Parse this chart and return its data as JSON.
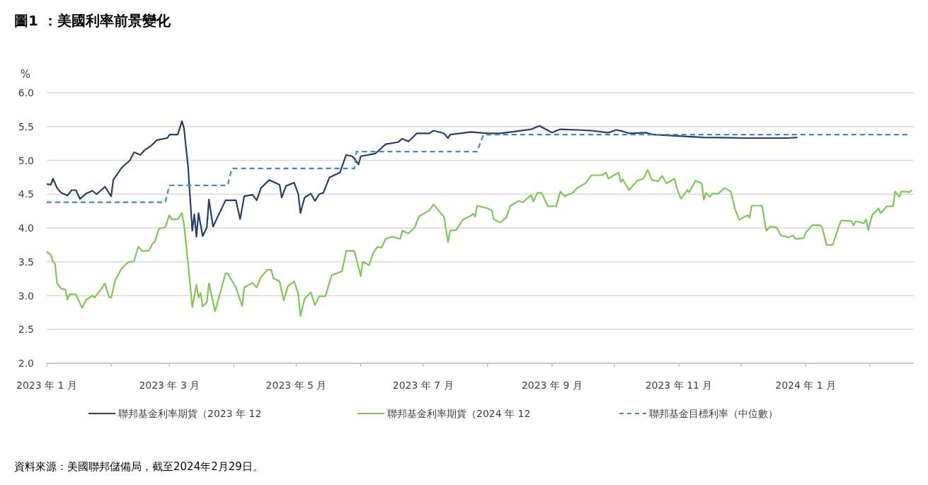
{
  "chart_data": {
    "type": "line",
    "title": "圖1 ：美國利率前景變化",
    "ylabel": "%",
    "xlim": [
      "2023-01-01",
      "2024-02-22"
    ],
    "xticks": [
      {
        "value": "2023-01-01",
        "label": "2023 年 1 月"
      },
      {
        "value": "2023-02-01",
        "label": null
      },
      {
        "value": "2023-03-01",
        "label": "2023 年 3 月"
      },
      {
        "value": "2023-04-01",
        "label": null
      },
      {
        "value": "2023-05-01",
        "label": "2023 年 5 月"
      },
      {
        "value": "2023-06-01",
        "label": null
      },
      {
        "value": "2023-07-01",
        "label": "2023 年 7 月"
      },
      {
        "value": "2023-08-01",
        "label": null
      },
      {
        "value": "2023-09-01",
        "label": "2023 年 9 月"
      },
      {
        "value": "2023-10-01",
        "label": null
      },
      {
        "value": "2023-11-01",
        "label": "2023 年 11 月"
      },
      {
        "value": "2023-12-01",
        "label": null
      },
      {
        "value": "2024-01-01",
        "label": "2024 年 1 月"
      },
      {
        "value": "2024-02-01",
        "label": null
      }
    ],
    "ylim": [
      2.0,
      6.0
    ],
    "yticks": [
      {
        "value": 2,
        "label": "2.0"
      },
      {
        "value": 2.5,
        "label": "2.5"
      },
      {
        "value": 3,
        "label": "3.0"
      },
      {
        "value": 3.5,
        "label": "3.5"
      },
      {
        "value": 4,
        "label": "4.0"
      },
      {
        "value": 4.5,
        "label": "4.5"
      },
      {
        "value": 5,
        "label": "5.0"
      },
      {
        "value": 5.5,
        "label": "5.5"
      },
      {
        "value": 6,
        "label": "6.0"
      }
    ],
    "grid": "y",
    "legend": "bottom",
    "annotations": [
      "資料來源：美國聯邦儲備局，截至2024年2月29日。"
    ],
    "series": [
      {
        "name": "聯邦基金利率期貨（2023 年 12",
        "color": "#243f6b",
        "line_style": "solid",
        "x": [
          "2023-01-01",
          "2023-01-03",
          "2023-01-04",
          "2023-01-06",
          "2023-01-08",
          "2023-01-11",
          "2023-01-13",
          "2023-01-15",
          "2023-01-17",
          "2023-01-20",
          "2023-01-23",
          "2023-01-25",
          "2023-01-29",
          "2023-02-01",
          "2023-02-02",
          "2023-02-06",
          "2023-02-10",
          "2023-02-12",
          "2023-02-15",
          "2023-02-17",
          "2023-02-20",
          "2023-02-23",
          "2023-02-28",
          "2023-03-01",
          "2023-03-05",
          "2023-03-07",
          "2023-03-08",
          "2023-03-10",
          "2023-03-12",
          "2023-03-13",
          "2023-03-14",
          "2023-03-15",
          "2023-03-17",
          "2023-03-19",
          "2023-03-20",
          "2023-03-22",
          "2023-03-28",
          "2023-04-02",
          "2023-04-04",
          "2023-04-06",
          "2023-04-10",
          "2023-04-12",
          "2023-04-14",
          "2023-04-18",
          "2023-04-23",
          "2023-04-24",
          "2023-04-26",
          "2023-04-30",
          "2023-05-02",
          "2023-05-03",
          "2023-05-05",
          "2023-05-08",
          "2023-05-10",
          "2023-05-12",
          "2023-05-14",
          "2023-05-17",
          "2023-05-22",
          "2023-05-25",
          "2023-05-28",
          "2023-05-31",
          "2023-06-01",
          "2023-06-08",
          "2023-06-13",
          "2023-06-19",
          "2023-06-21",
          "2023-06-24",
          "2023-06-28",
          "2023-07-04",
          "2023-07-06",
          "2023-07-11",
          "2023-07-13",
          "2023-07-14",
          "2023-07-24",
          "2023-08-01",
          "2023-08-07",
          "2023-08-15",
          "2023-08-22",
          "2023-08-26",
          "2023-08-29",
          "2023-09-01",
          "2023-09-05",
          "2023-09-13",
          "2023-09-20",
          "2023-09-28",
          "2023-10-02",
          "2023-10-05",
          "2023-10-08",
          "2023-10-16",
          "2023-10-20",
          "2023-11-01",
          "2023-11-13",
          "2023-12-05",
          "2023-12-23",
          "2023-12-28"
        ],
        "values": [
          4.65,
          4.64,
          4.73,
          4.59,
          4.52,
          4.48,
          4.56,
          4.56,
          4.43,
          4.51,
          4.55,
          4.5,
          4.61,
          4.47,
          4.71,
          4.89,
          5.0,
          5.12,
          5.08,
          5.15,
          5.21,
          5.3,
          5.33,
          5.38,
          5.38,
          5.58,
          5.48,
          4.9,
          3.96,
          4.2,
          3.87,
          4.22,
          3.88,
          4.01,
          4.42,
          4.02,
          4.41,
          4.41,
          4.13,
          4.47,
          4.49,
          4.41,
          4.59,
          4.71,
          4.64,
          4.45,
          4.62,
          4.67,
          4.5,
          4.22,
          4.45,
          4.51,
          4.4,
          4.5,
          4.52,
          4.75,
          4.82,
          5.08,
          5.06,
          4.94,
          5.06,
          5.1,
          5.24,
          5.27,
          5.32,
          5.28,
          5.4,
          5.4,
          5.44,
          5.4,
          5.33,
          5.38,
          5.42,
          5.4,
          5.4,
          5.43,
          5.46,
          5.51,
          5.46,
          5.41,
          5.46,
          5.45,
          5.44,
          5.41,
          5.45,
          5.43,
          5.4,
          5.41,
          5.38,
          5.36,
          5.34,
          5.33,
          5.33,
          5.34
        ]
      },
      {
        "name": "聯邦基金利率期貨（2024 年 12",
        "color": "#7dc855",
        "line_style": "solid",
        "x": [
          "2023-01-01",
          "2023-01-03",
          "2023-01-04",
          "2023-01-05",
          "2023-01-06",
          "2023-01-08",
          "2023-01-10",
          "2023-01-11",
          "2023-01-12",
          "2023-01-15",
          "2023-01-18",
          "2023-01-20",
          "2023-01-23",
          "2023-01-24",
          "2023-01-27",
          "2023-01-29",
          "2023-01-31",
          "2023-02-01",
          "2023-02-03",
          "2023-02-06",
          "2023-02-09",
          "2023-02-12",
          "2023-02-14",
          "2023-02-16",
          "2023-02-19",
          "2023-02-21",
          "2023-02-22",
          "2023-02-24",
          "2023-02-27",
          "2023-03-01",
          "2023-03-02",
          "2023-03-05",
          "2023-03-07",
          "2023-03-08",
          "2023-03-10",
          "2023-03-12",
          "2023-03-14",
          "2023-03-15",
          "2023-03-16",
          "2023-03-17",
          "2023-03-19",
          "2023-03-20",
          "2023-03-23",
          "2023-03-28",
          "2023-03-29",
          "2023-04-02",
          "2023-04-05",
          "2023-04-06",
          "2023-04-10",
          "2023-04-12",
          "2023-04-14",
          "2023-04-17",
          "2023-04-19",
          "2023-04-20",
          "2023-04-23",
          "2023-04-25",
          "2023-04-27",
          "2023-04-30",
          "2023-05-02",
          "2023-05-03",
          "2023-05-05",
          "2023-05-08",
          "2023-05-10",
          "2023-05-12",
          "2023-05-15",
          "2023-05-18",
          "2023-05-23",
          "2023-05-25",
          "2023-05-29",
          "2023-06-01",
          "2023-06-02",
          "2023-06-05",
          "2023-06-07",
          "2023-06-09",
          "2023-06-11",
          "2023-06-13",
          "2023-06-16",
          "2023-06-20",
          "2023-06-21",
          "2023-06-24",
          "2023-06-27",
          "2023-06-29",
          "2023-07-04",
          "2023-07-06",
          "2023-07-10",
          "2023-07-11",
          "2023-07-13",
          "2023-07-14",
          "2023-07-17",
          "2023-07-20",
          "2023-07-24",
          "2023-07-25",
          "2023-07-26",
          "2023-07-27",
          "2023-08-01",
          "2023-08-03",
          "2023-08-04",
          "2023-08-07",
          "2023-08-10",
          "2023-08-12",
          "2023-08-16",
          "2023-08-18",
          "2023-08-22",
          "2023-08-23",
          "2023-08-25",
          "2023-08-27",
          "2023-08-30",
          "2023-09-03",
          "2023-09-05",
          "2023-09-07",
          "2023-09-11",
          "2023-09-13",
          "2023-09-17",
          "2023-09-20",
          "2023-09-25",
          "2023-09-27",
          "2023-09-28",
          "2023-10-03",
          "2023-10-04",
          "2023-10-05",
          "2023-10-08",
          "2023-10-12",
          "2023-10-15",
          "2023-10-17",
          "2023-10-19",
          "2023-10-22",
          "2023-10-24",
          "2023-10-26",
          "2023-10-30",
          "2023-10-31",
          "2023-11-02",
          "2023-11-05",
          "2023-11-06",
          "2023-11-09",
          "2023-11-12",
          "2023-11-13",
          "2023-11-14",
          "2023-11-16",
          "2023-11-17",
          "2023-11-20",
          "2023-11-23",
          "2023-11-26",
          "2023-11-28",
          "2023-11-30",
          "2023-12-04",
          "2023-12-05",
          "2023-12-06",
          "2023-12-11",
          "2023-12-13",
          "2023-12-15",
          "2023-12-18",
          "2023-12-20",
          "2023-12-24",
          "2023-12-26",
          "2023-12-27",
          "2023-12-31",
          "2024-01-01",
          "2024-01-04",
          "2024-01-08",
          "2024-01-09",
          "2024-01-11",
          "2024-01-14",
          "2024-01-17",
          "2024-01-18",
          "2024-01-23",
          "2024-01-24",
          "2024-01-25",
          "2024-01-29",
          "2024-01-30",
          "2024-01-31",
          "2024-02-02",
          "2024-02-05",
          "2024-02-06",
          "2024-02-09",
          "2024-02-12",
          "2024-02-13",
          "2024-02-15",
          "2024-02-16",
          "2024-02-20",
          "2024-02-21"
        ],
        "values": [
          3.65,
          3.6,
          3.51,
          3.47,
          3.18,
          3.1,
          3.09,
          2.94,
          3.02,
          3.02,
          2.82,
          2.94,
          3.0,
          2.97,
          3.09,
          3.18,
          2.98,
          2.97,
          3.23,
          3.4,
          3.49,
          3.51,
          3.72,
          3.66,
          3.66,
          3.77,
          3.8,
          3.99,
          4.01,
          4.19,
          4.13,
          4.13,
          4.22,
          4.06,
          3.47,
          2.83,
          3.16,
          2.97,
          3.04,
          2.84,
          2.9,
          3.18,
          2.77,
          3.33,
          3.33,
          3.12,
          2.84,
          3.12,
          3.19,
          3.12,
          3.27,
          3.38,
          3.38,
          3.26,
          3.21,
          2.93,
          3.14,
          3.21,
          3.02,
          2.7,
          2.95,
          3.05,
          2.86,
          2.99,
          2.99,
          3.3,
          3.36,
          3.66,
          3.66,
          3.29,
          3.5,
          3.45,
          3.63,
          3.72,
          3.71,
          3.84,
          3.87,
          3.84,
          3.96,
          3.92,
          4.01,
          4.17,
          4.26,
          4.35,
          4.2,
          4.17,
          3.79,
          3.96,
          3.97,
          4.12,
          4.18,
          4.21,
          4.17,
          4.33,
          4.29,
          4.26,
          4.13,
          4.08,
          4.15,
          4.33,
          4.4,
          4.38,
          4.49,
          4.39,
          4.52,
          4.52,
          4.32,
          4.32,
          4.54,
          4.47,
          4.52,
          4.59,
          4.66,
          4.78,
          4.78,
          4.82,
          4.73,
          4.82,
          4.68,
          4.72,
          4.56,
          4.7,
          4.73,
          4.86,
          4.71,
          4.69,
          4.77,
          4.66,
          4.73,
          4.59,
          4.43,
          4.56,
          4.53,
          4.7,
          4.66,
          4.42,
          4.52,
          4.46,
          4.51,
          4.51,
          4.59,
          4.54,
          4.28,
          4.12,
          4.19,
          4.15,
          4.33,
          4.33,
          3.96,
          4.02,
          4.01,
          3.89,
          3.86,
          3.89,
          3.84,
          3.85,
          3.93,
          4.04,
          4.04,
          4.0,
          3.75,
          3.75,
          4.03,
          4.11,
          4.1,
          4.04,
          4.1,
          4.07,
          4.13,
          3.97,
          4.19,
          4.29,
          4.22,
          4.32,
          4.32,
          4.54,
          4.46,
          4.54,
          4.53,
          4.56
        ]
      },
      {
        "name": "聯邦基金目標利率（中位數）",
        "color": "#3a8cc4",
        "line_style": "dashed",
        "x": [
          "2023-01-01",
          "2023-02-27",
          "2023-03-01",
          "2023-03-29",
          "2023-03-31",
          "2023-05-29",
          "2023-05-30",
          "2023-07-27",
          "2023-07-30",
          "2024-02-19"
        ],
        "values": [
          4.38,
          4.38,
          4.63,
          4.63,
          4.88,
          4.88,
          5.13,
          5.13,
          5.38,
          5.38
        ]
      }
    ]
  }
}
